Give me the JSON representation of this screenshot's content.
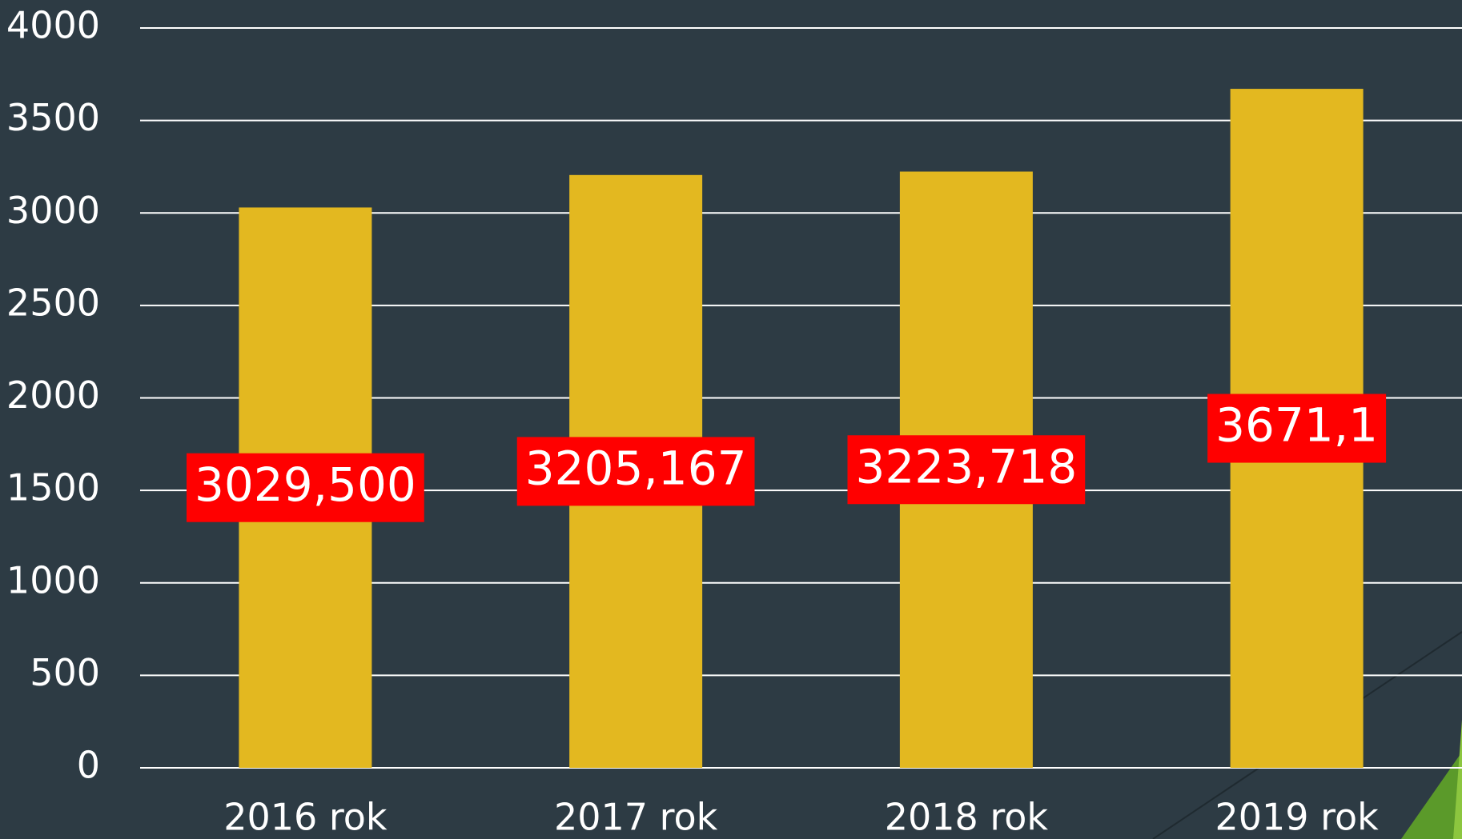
{
  "chart_data": {
    "type": "bar",
    "categories": [
      "2016 rok",
      "2017 rok",
      "2018 rok",
      "2019 rok"
    ],
    "values": [
      3029.5,
      3205.167,
      3223.718,
      3671.1
    ],
    "value_labels": [
      "3029,500",
      "3205,167",
      "3223,718",
      "3671,1"
    ],
    "color": "#e3b820",
    "ylim": [
      0,
      4000
    ],
    "yticks": [
      0,
      500,
      1000,
      1500,
      2000,
      2500,
      3000,
      3500,
      4000
    ],
    "grid": true
  }
}
